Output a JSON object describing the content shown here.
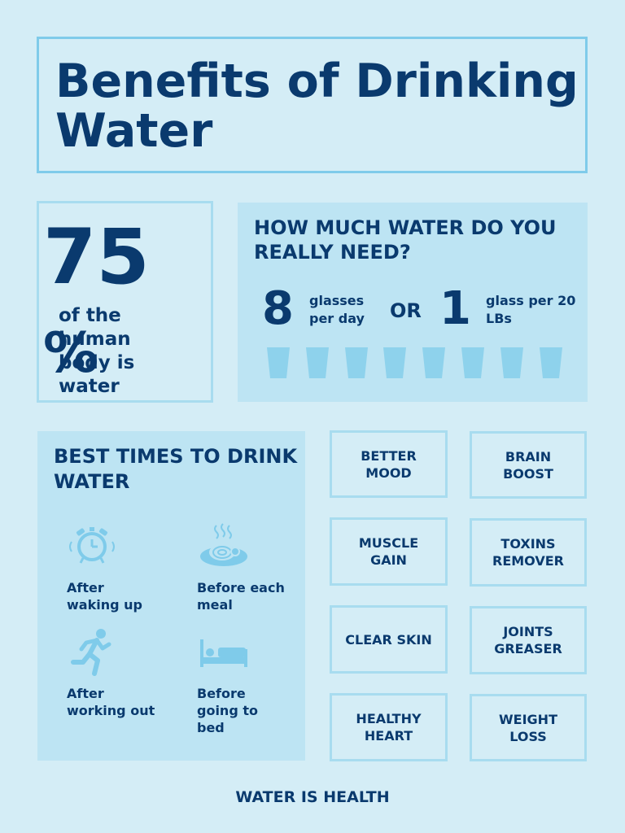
{
  "title": "Benefits of Drinking Water",
  "stat": {
    "number": "75",
    "percent": "%",
    "text": "of the human body is water"
  },
  "need": {
    "title": "HOW MUCH WATER DO YOU REALLY NEED?",
    "glasses_count": "8",
    "glasses_label": "glasses per day",
    "or": "OR",
    "glass_count": "1",
    "glass_label": "glass per 20 LBs",
    "cup_icon_count": 8
  },
  "best_times": {
    "title": "BEST TIMES TO DRINK WATER",
    "items": [
      {
        "icon": "alarm-clock-icon",
        "label": "After waking up"
      },
      {
        "icon": "meal-icon",
        "label": "Before each meal"
      },
      {
        "icon": "running-person-icon",
        "label": "After working out"
      },
      {
        "icon": "bed-icon",
        "label": "Before going to bed"
      }
    ]
  },
  "benefits": [
    "BETTER MOOD",
    "BRAIN BOOST",
    "MUSCLE GAIN",
    "TOXINS REMOVER",
    "CLEAR SKIN",
    "JOINTS GREASER",
    "HEALTHY HEART",
    "WEIGHT LOSS"
  ],
  "footer": "WATER IS HEALTH",
  "colors": {
    "background": "#d4edf6",
    "panel": "#bde4f3",
    "accent": "#7fcbea",
    "text": "#0a3a6e"
  }
}
